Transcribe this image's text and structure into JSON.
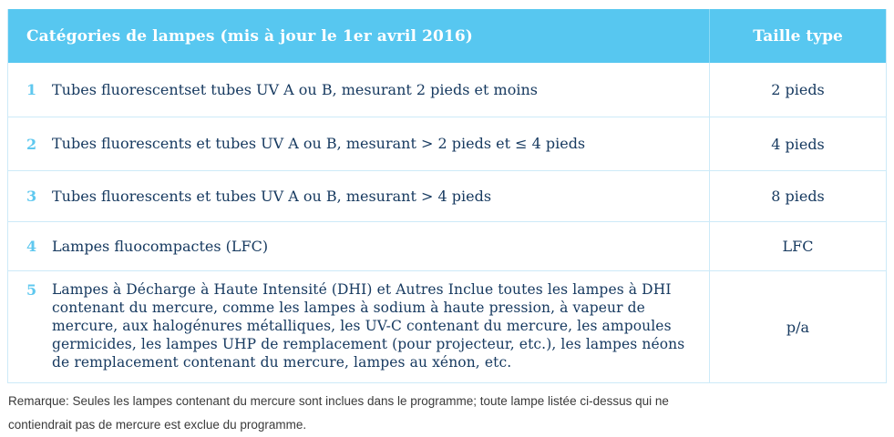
{
  "table": {
    "header": {
      "col1": "Catégories de lampes (mis à jour le 1er avril 2016)",
      "col2": "Taille type"
    },
    "rows": [
      {
        "num": "1",
        "description": "Tubes fluorescentset tubes UV A ou B, mesurant 2 pieds et moins",
        "size": "2 pieds"
      },
      {
        "num": "2",
        "description": "Tubes fluorescents et tubes UV A ou B,  mesurant > 2 pieds et ≤ 4 pieds",
        "size": "4 pieds"
      },
      {
        "num": "3",
        "description": "Tubes fluorescents et tubes UV A ou B,  mesurant > 4 pieds",
        "size": "8 pieds"
      },
      {
        "num": "4",
        "description": "Lampes fluocompactes (LFC)",
        "size": "LFC"
      },
      {
        "num": "5",
        "description": "Lampes à Décharge à Haute Intensité (DHI) et Autres Inclue toutes les lampes à DHI contenant du mercure, comme les lampes à sodium à haute pression, à vapeur de mercure, aux halogénures métalliques, les UV-C contenant du mercure, les ampoules germicides, les lampes UHP de remplacement (pour projecteur, etc.), les lampes néons de remplacement contenant du mercure, lampes au xénon, etc.",
        "size": "p/a"
      }
    ]
  },
  "note": {
    "line1": "Remarque: Seules les lampes contenant du mercure sont inclues dans le programme; toute lampe listée ci-dessus qui ne",
    "line2": "contiendrait pas de mercure est exclue du programme."
  },
  "colors": {
    "header_background": "#57c7f0",
    "header_text": "#ffffff",
    "row_number": "#5fc8ef",
    "body_text": "#173a60",
    "divider": "#cdeaf8",
    "note_text": "#3a3a3a"
  }
}
